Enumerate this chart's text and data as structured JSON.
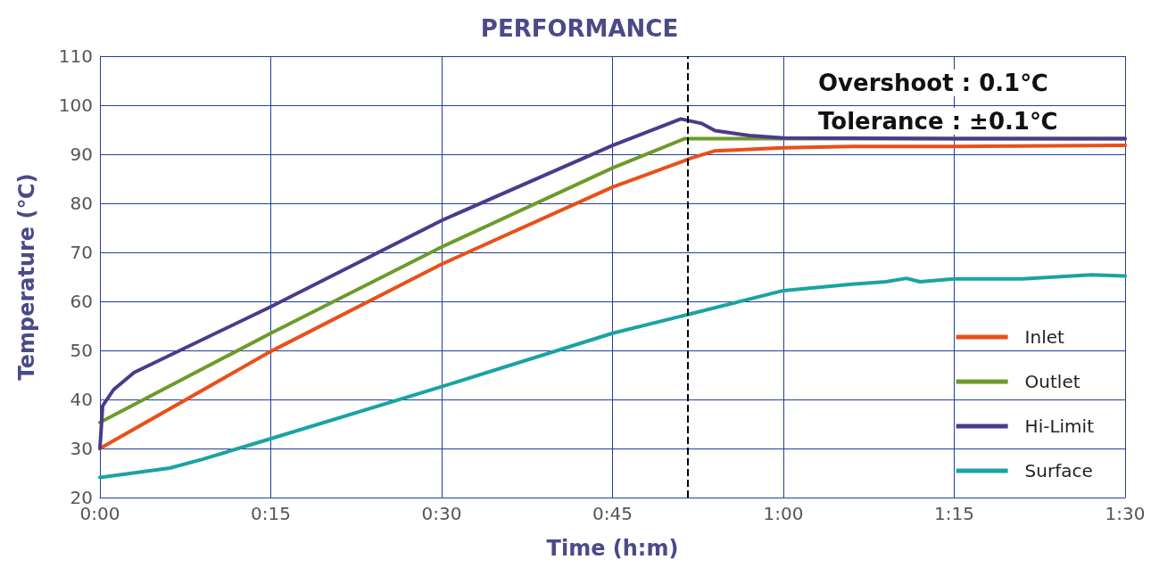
{
  "chart_data": {
    "type": "line",
    "title": "PERFORMANCE",
    "xlabel": "Time (h:m)",
    "ylabel": "Temperature (℃)",
    "annotations": [
      "Overshoot : 0.1℃",
      "Tolerance : ±0.1℃"
    ],
    "xlim": [
      0,
      1.5
    ],
    "xticks": [
      {
        "value": 0,
        "label": "0:00"
      },
      {
        "value": 0.25,
        "label": "0:15"
      },
      {
        "value": 0.5,
        "label": "0:30"
      },
      {
        "value": 0.75,
        "label": "0:45"
      },
      {
        "value": 1,
        "label": "1:00"
      },
      {
        "value": 1.25,
        "label": "1:15"
      },
      {
        "value": 1.5,
        "label": "1:30"
      }
    ],
    "ylim": [
      20,
      110
    ],
    "yticks": [
      20,
      30,
      40,
      50,
      60,
      70,
      80,
      90,
      100,
      110
    ],
    "grid": true,
    "legend": "bottom right",
    "marker": "none",
    "line_style": "solid",
    "ref_lines": [
      {
        "axis": "x",
        "value": 0.863,
        "color": "#000000",
        "line_style": "dashed"
      }
    ],
    "series": [
      {
        "name": "Inlet",
        "color": "#e8501a",
        "x": [
          0,
          0.25,
          0.5,
          0.75,
          0.863,
          0.9,
          1,
          1.1,
          1.25,
          1.5
        ],
        "values": [
          30,
          49.8,
          67.6,
          83.3,
          89.1,
          90.7,
          91.3,
          91.6,
          91.6,
          91.8
        ]
      },
      {
        "name": "Outlet",
        "color": "#6e9a2a",
        "x": [
          0,
          0.25,
          0.5,
          0.75,
          0.856,
          1,
          1.25,
          1.5
        ],
        "values": [
          35.3,
          53.5,
          71.1,
          87.2,
          93.2,
          93.2,
          93.2,
          93.2
        ]
      },
      {
        "name": "Hi-Limit",
        "color": "#4b3a8c",
        "x": [
          0,
          0.004,
          0.02,
          0.05,
          0.25,
          0.5,
          0.75,
          0.85,
          0.88,
          0.9,
          0.95,
          1,
          1.25,
          1.5
        ],
        "values": [
          30,
          38.7,
          42,
          45.5,
          58.9,
          76.5,
          91.8,
          97.2,
          96.3,
          94.8,
          93.8,
          93.3,
          93.2,
          93.2
        ]
      },
      {
        "name": "Surface",
        "color": "#1aa3a3",
        "x": [
          0,
          0.102,
          0.15,
          0.25,
          0.5,
          0.75,
          0.863,
          1,
          1.1,
          1.15,
          1.18,
          1.2,
          1.25,
          1.35,
          1.45,
          1.5
        ],
        "values": [
          24.1,
          26,
          27.8,
          32,
          42.6,
          53.5,
          57.4,
          62.2,
          63.5,
          64,
          64.7,
          64,
          64.6,
          64.6,
          65.4,
          65.2
        ]
      }
    ]
  }
}
